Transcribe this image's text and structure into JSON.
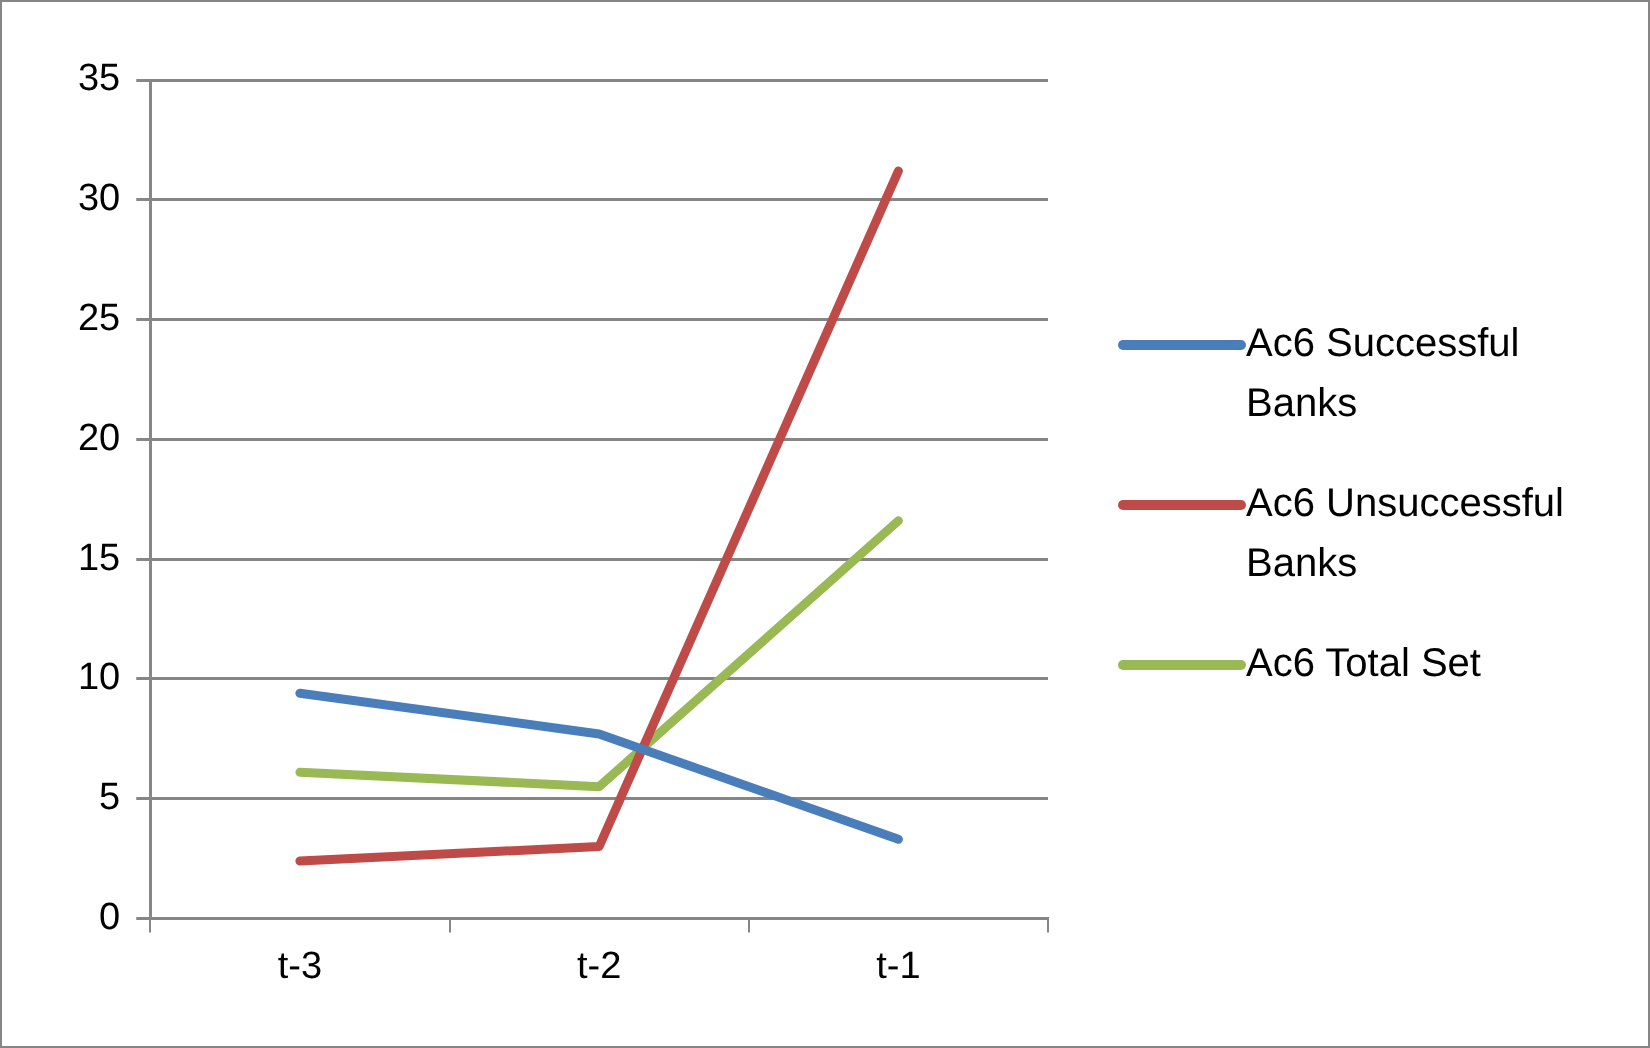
{
  "chart_data": {
    "type": "line",
    "categories": [
      "t-3",
      "t-2",
      "t-1"
    ],
    "series": [
      {
        "name": "Ac6 Successful Banks",
        "color": "#4a7ebb",
        "values": [
          9.4,
          7.7,
          3.3
        ]
      },
      {
        "name": "Ac6 Unsuccessful Banks",
        "color": "#be4b48",
        "values": [
          2.4,
          3.0,
          31.2
        ]
      },
      {
        "name": "Ac6 Total Set",
        "color": "#98b954",
        "values": [
          6.1,
          5.5,
          16.6
        ]
      }
    ],
    "ylim": [
      0,
      35
    ],
    "yticks": [
      0,
      5,
      10,
      15,
      20,
      25,
      30,
      35
    ],
    "grid": "y",
    "legend": "right",
    "marker": "none",
    "line_style": "solid"
  }
}
